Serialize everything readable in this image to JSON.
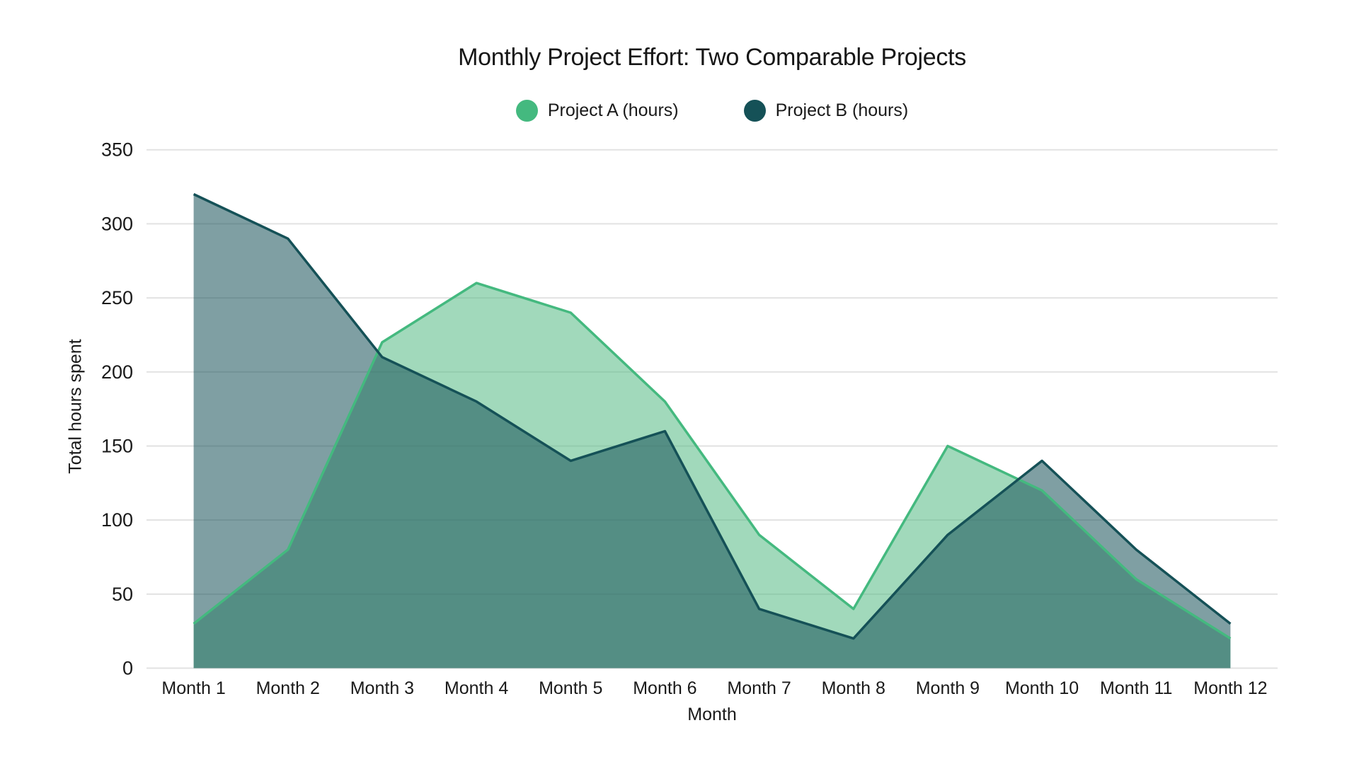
{
  "title": "Monthly Project Effort: Two Comparable Projects",
  "chart_data": {
    "type": "area",
    "categories": [
      "Month 1",
      "Month 2",
      "Month 3",
      "Month 4",
      "Month 5",
      "Month 6",
      "Month 7",
      "Month 8",
      "Month 9",
      "Month 10",
      "Month 11",
      "Month 12"
    ],
    "series": [
      {
        "name": "Project A (hours)",
        "values": [
          30,
          80,
          220,
          260,
          240,
          180,
          90,
          40,
          150,
          120,
          60,
          20
        ],
        "line_color": "#44b97f",
        "fill_color": "#58bb85",
        "fill_opacity": 0.56
      },
      {
        "name": "Project B (hours)",
        "values": [
          320,
          290,
          210,
          180,
          140,
          160,
          40,
          20,
          90,
          140,
          80,
          30
        ],
        "line_color": "#155157",
        "fill_color": "#155157",
        "fill_opacity": 0.55
      }
    ],
    "title": "Monthly Project Effort: Two Comparable Projects",
    "xlabel": "Month",
    "ylabel": "Total hours spent",
    "y_ticks": [
      0,
      50,
      100,
      150,
      200,
      250,
      300,
      350
    ],
    "ylim": [
      0,
      350
    ],
    "grid": true,
    "legend_position": "top",
    "background_color": "#ffffff",
    "text_color": "#1a1a1a",
    "grid_color": "#e2e2e2"
  }
}
